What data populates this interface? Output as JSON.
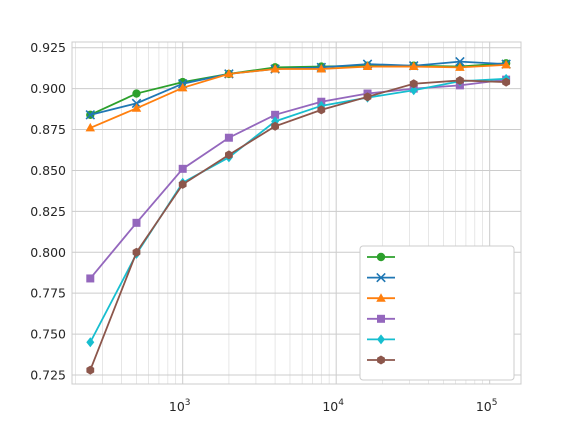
{
  "chart_data": {
    "type": "line",
    "title": "",
    "xlabel": "",
    "ylabel": "",
    "x_scale": "log",
    "xlim": [
      190,
      160000
    ],
    "ylim": [
      0.7195,
      0.9285
    ],
    "grid": true,
    "legend_position": "lower-right",
    "x": [
      250,
      500,
      1000,
      2000,
      4000,
      8000,
      16000,
      32000,
      64000,
      128000
    ],
    "y_ticks": [
      {
        "value": 0.725,
        "label": "0.725"
      },
      {
        "value": 0.75,
        "label": "0.750"
      },
      {
        "value": 0.775,
        "label": "0.775"
      },
      {
        "value": 0.8,
        "label": "0.800"
      },
      {
        "value": 0.825,
        "label": "0.825"
      },
      {
        "value": 0.85,
        "label": "0.850"
      },
      {
        "value": 0.875,
        "label": "0.875"
      },
      {
        "value": 0.9,
        "label": "0.900"
      },
      {
        "value": 0.925,
        "label": "0.925"
      }
    ],
    "x_ticks": [
      {
        "value": 1000,
        "base": "10",
        "exp": "3"
      },
      {
        "value": 10000,
        "base": "10",
        "exp": "4"
      },
      {
        "value": 100000,
        "base": "10",
        "exp": "5"
      }
    ],
    "series": [
      {
        "color": "#2ca02c",
        "marker": "circle",
        "values": [
          0.884,
          0.897,
          0.904,
          0.909,
          0.913,
          0.9135,
          0.914,
          0.914,
          0.9135,
          0.9155
        ]
      },
      {
        "color": "#1f77b4",
        "marker": "x",
        "values": [
          0.884,
          0.891,
          0.903,
          0.909,
          0.912,
          0.913,
          0.915,
          0.914,
          0.9165,
          0.915
        ]
      },
      {
        "color": "#ff7f0e",
        "marker": "triangle",
        "values": [
          0.876,
          0.888,
          0.9005,
          0.909,
          0.912,
          0.912,
          0.9135,
          0.9135,
          0.913,
          0.9145
        ]
      },
      {
        "color": "#9467bd",
        "marker": "square",
        "values": [
          0.784,
          0.818,
          0.851,
          0.87,
          0.884,
          0.892,
          0.897,
          0.9,
          0.902,
          0.9055
        ]
      },
      {
        "color": "#17becf",
        "marker": "diamond",
        "values": [
          0.745,
          0.799,
          0.8425,
          0.858,
          0.88,
          0.8895,
          0.8945,
          0.899,
          0.9045,
          0.906
        ]
      },
      {
        "color": "#8c564b",
        "marker": "hexagon",
        "values": [
          0.728,
          0.8,
          0.8415,
          0.8595,
          0.877,
          0.887,
          0.895,
          0.903,
          0.905,
          0.904
        ]
      }
    ]
  }
}
